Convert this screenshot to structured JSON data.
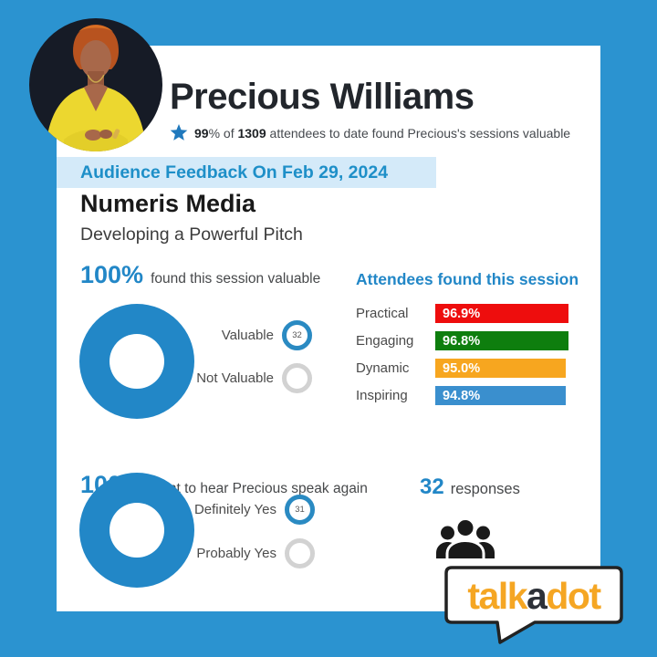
{
  "page": {
    "background": "#2b93d0",
    "card_background": "#ffffff",
    "accent_blue": "#2287c7"
  },
  "header": {
    "name": "Precious Williams",
    "rating_line": {
      "pct": "99",
      "pct_suffix": "% of ",
      "total": "1309",
      "rest": " attendees to date found Precious's sessions valuable"
    },
    "star_color": "#2079bd"
  },
  "banner": {
    "text": "Audience Feedback On Feb 29, 2024",
    "background": "#d4eaf9",
    "color": "#1e8fc8"
  },
  "session": {
    "organization": "Numeris Media",
    "talk_title": "Developing a Powerful Pitch"
  },
  "stats": {
    "valuable": {
      "value": "100%",
      "label": "found this session valuable",
      "legend": [
        {
          "label": "Valuable",
          "count": "32",
          "ring": "#2a8ac2"
        },
        {
          "label": "Not Valuable",
          "count": "",
          "ring": "#d2d2d2"
        }
      ]
    },
    "speak_again": {
      "value": "100%",
      "label": "want to hear Precious speak again",
      "legend": [
        {
          "label": "Definitely Yes",
          "count": "31",
          "ring": "#2a8ac2"
        },
        {
          "label": "Probably Yes",
          "count": "",
          "ring": "#d2d2d2"
        }
      ]
    },
    "responses": {
      "count": "32",
      "label": "responses"
    }
  },
  "ratings_heading": "Attendees found this session",
  "chart_data": [
    {
      "type": "pie",
      "title": "100% found this session valuable",
      "labels": [
        "Valuable",
        "Not Valuable"
      ],
      "values": [
        32,
        0
      ],
      "colors": [
        "#2287c7",
        "#e6e6e6"
      ]
    },
    {
      "type": "bar",
      "title": "Attendees found this session",
      "categories": [
        "Practical",
        "Engaging",
        "Dynamic",
        "Inspiring"
      ],
      "values": [
        96.9,
        96.8,
        95.0,
        94.8
      ],
      "value_labels": [
        "96.9%",
        "96.8%",
        "95.0%",
        "94.8%"
      ],
      "colors": [
        "#ee0d0d",
        "#0e7e0e",
        "#f7a61f",
        "#3a8fce"
      ],
      "xlim": [
        0,
        100
      ],
      "orientation": "horizontal",
      "grid": false,
      "legend_position": "none"
    },
    {
      "type": "pie",
      "title": "100% want to hear Precious speak again",
      "labels": [
        "Definitely Yes",
        "Probably Yes"
      ],
      "values": [
        31,
        0
      ],
      "colors": [
        "#2287c7",
        "#e6e6e6"
      ]
    }
  ],
  "logo": {
    "talk": "talk",
    "a": "a",
    "dot": "dot",
    "orange": "#f5a623",
    "dark": "#2d3138"
  }
}
